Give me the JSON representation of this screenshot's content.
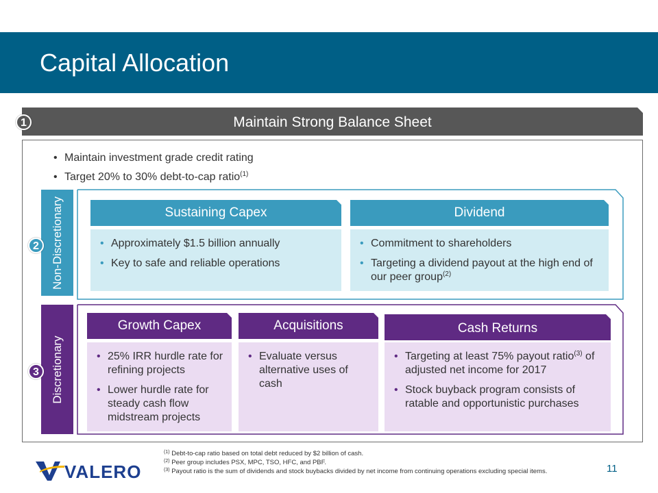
{
  "title": "Capital Allocation",
  "section1": {
    "badge": "1",
    "header": "Maintain Strong Balance Sheet",
    "bullets": [
      {
        "text": "Maintain investment grade credit rating",
        "sup": ""
      },
      {
        "text": "Target 20% to 30% debt-to-cap ratio",
        "sup": "(1)"
      }
    ]
  },
  "section2": {
    "badge": "2",
    "label": "Non-Discretionary",
    "cards": [
      {
        "title": "Sustaining Capex",
        "bullets": [
          {
            "text": "Approximately $1.5 billion annually"
          },
          {
            "text": "Key to safe and reliable operations"
          }
        ]
      },
      {
        "title": "Dividend",
        "bullets": [
          {
            "text": "Commitment to shareholders"
          },
          {
            "text": "Targeting a dividend payout at the high end of our peer group",
            "sup": "(2)"
          }
        ]
      }
    ]
  },
  "section3": {
    "badge": "3",
    "label": "Discretionary",
    "cards": [
      {
        "title": "Growth Capex",
        "bullets": [
          {
            "text": "25% IRR hurdle rate for refining projects"
          },
          {
            "text": "Lower hurdle rate for steady cash flow midstream projects"
          }
        ]
      },
      {
        "title": "Acquisitions",
        "bullets": [
          {
            "text": "Evaluate versus alternative uses of cash"
          }
        ]
      },
      {
        "title": "Cash Returns",
        "bullets": [
          {
            "text": "Targeting at least 75% payout ratio",
            "sup": "(3)",
            "text2": " of adjusted net income for 2017"
          },
          {
            "text": "Stock buyback program consists of ratable and opportunistic purchases"
          }
        ]
      }
    ]
  },
  "footnotes": [
    {
      "marker": "(1)",
      "text": "Debt-to-cap ratio based on total debt reduced by $2 billion of cash."
    },
    {
      "marker": "(2)",
      "text": "Peer group includes PSX, MPC, TSO, HFC, and PBF."
    },
    {
      "marker": "(3)",
      "text": "Payout ratio is the sum of dividends and stock buybacks divided by net income from continuing operations excluding special items."
    }
  ],
  "logo": {
    "text": "VALERO",
    "icon": "valero-v-icon"
  },
  "page_number": "11",
  "colors": {
    "title_bar": "#005f86",
    "section1_header": "#575757",
    "teal": "#3a9bbe",
    "teal_light": "#d2ecf3",
    "purple": "#5f2a83",
    "purple_light": "#ebdcf2",
    "logo_blue": "#1d3f8f",
    "logo_yellow": "#f4b400"
  }
}
